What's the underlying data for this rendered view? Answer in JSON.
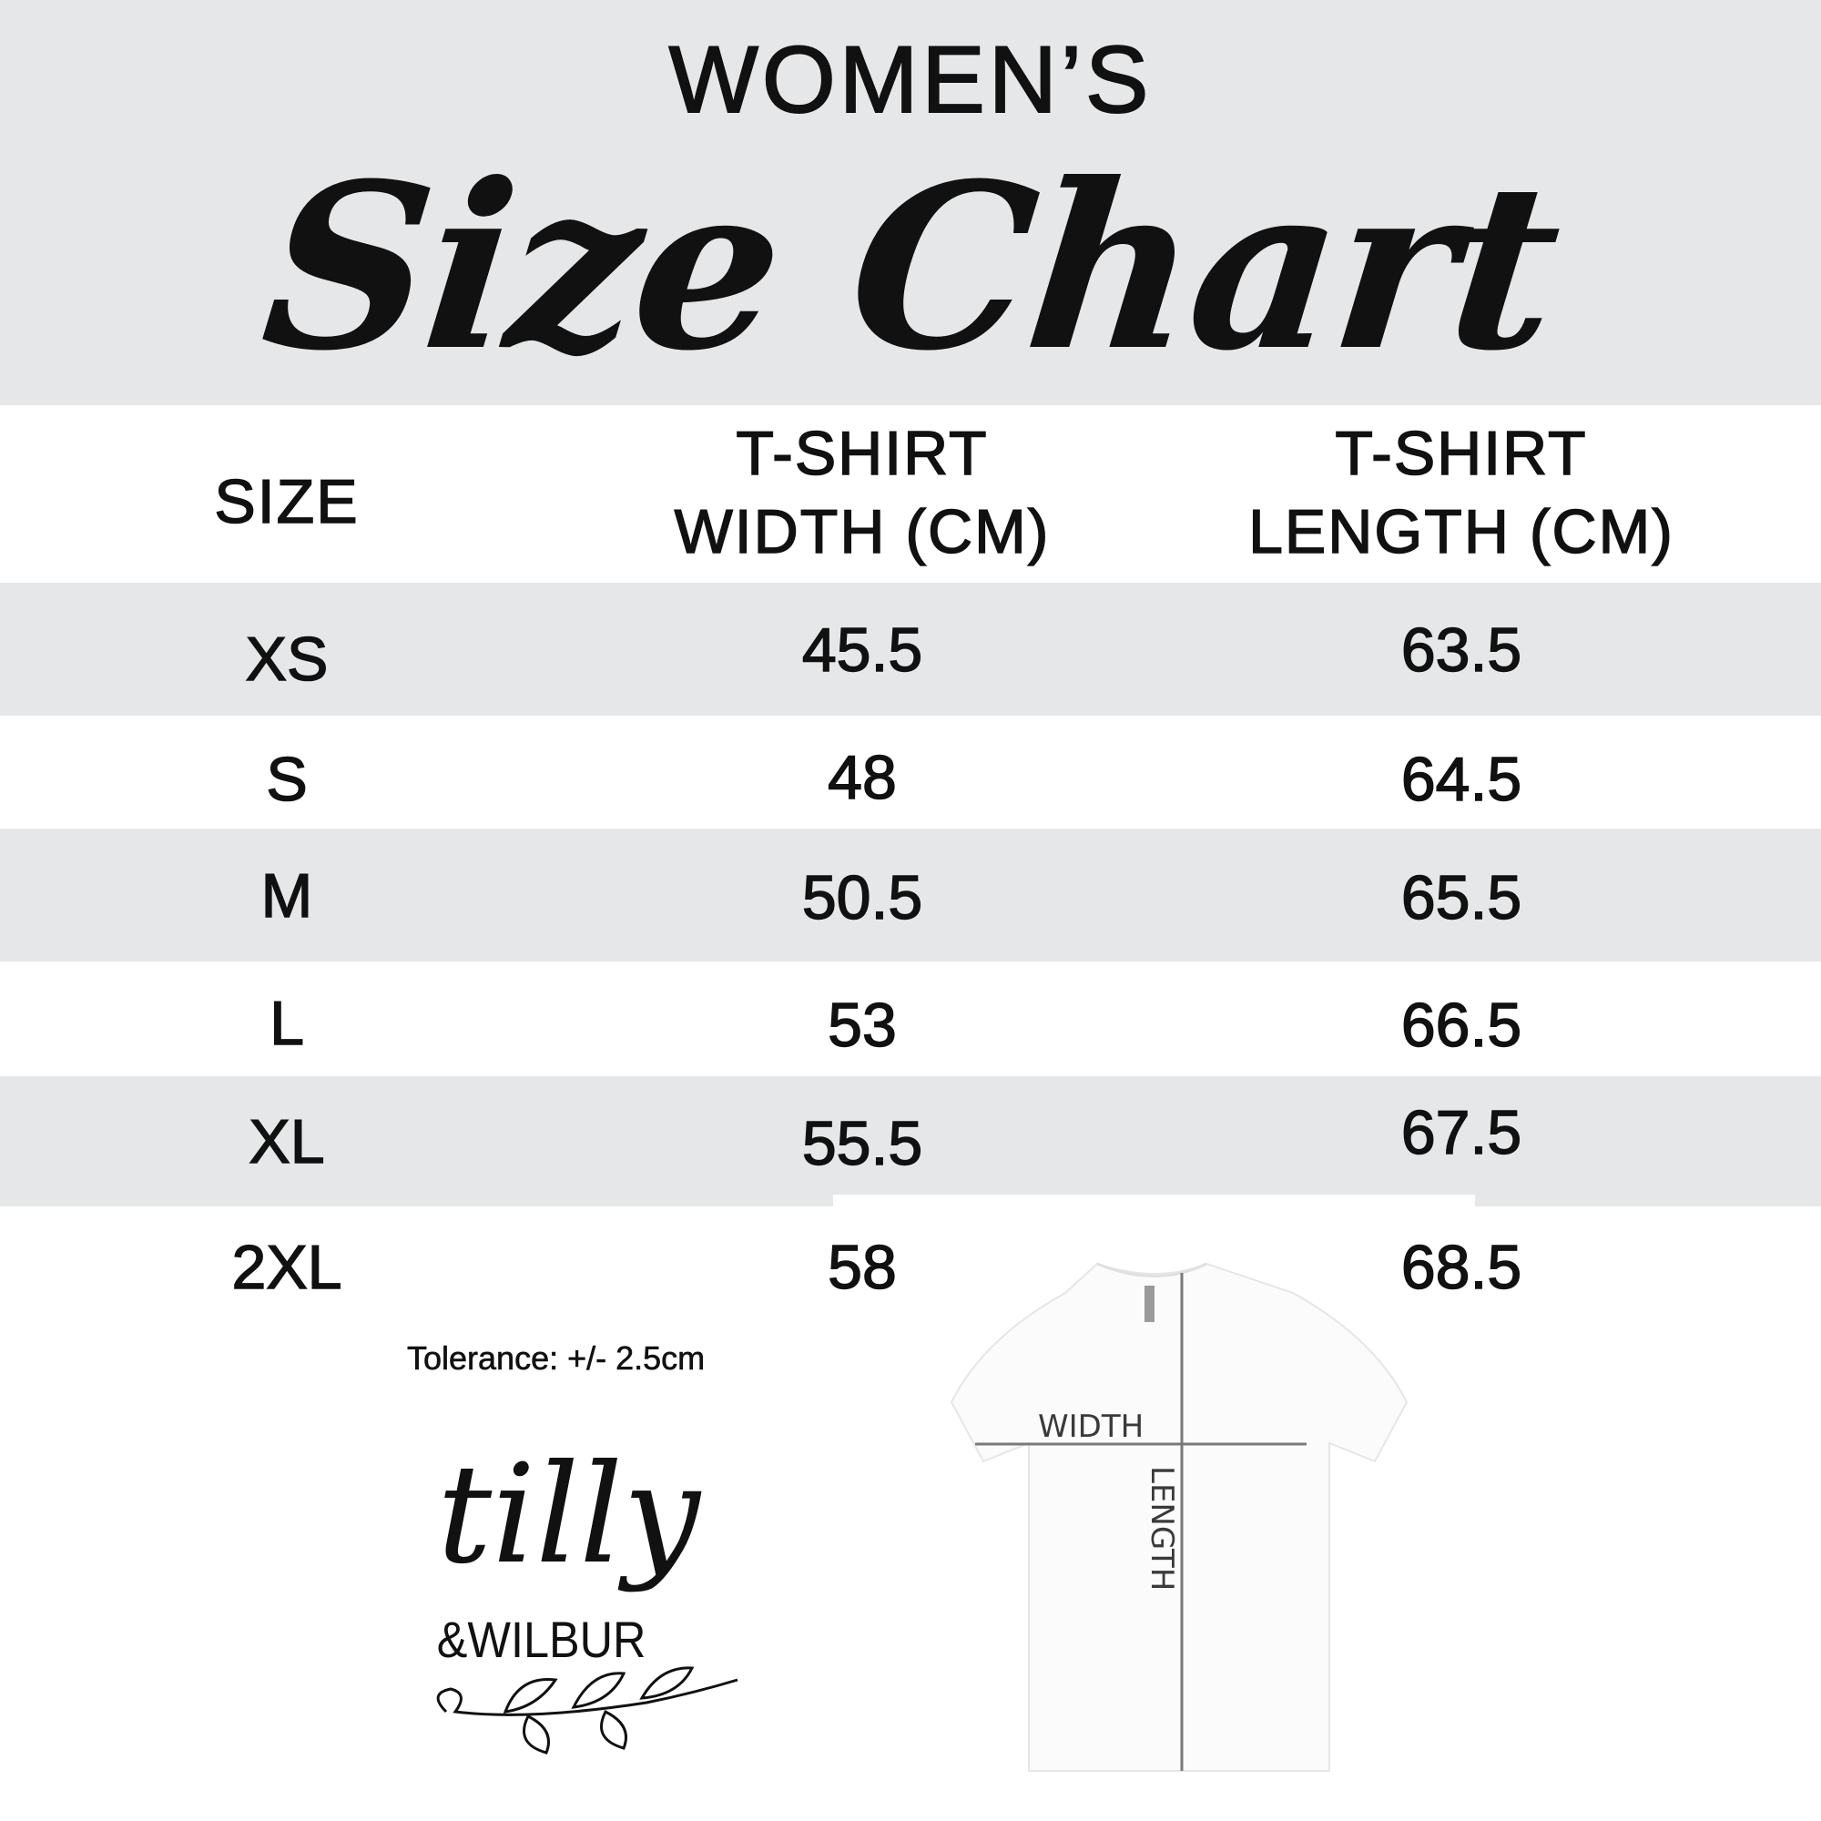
{
  "header": {
    "subtitle": "WOMEN’S",
    "title": "Size Chart"
  },
  "colors": {
    "band": "#e6e7e8",
    "text": "#111111",
    "measure_line": "#7a7a7a"
  },
  "table": {
    "columns": [
      {
        "line1": "SIZE",
        "line2": ""
      },
      {
        "line1": "T-SHIRT",
        "line2": "WIDTH (CM)"
      },
      {
        "line1": "T-SHIRT",
        "line2": "LENGTH (CM)"
      }
    ],
    "rows": [
      {
        "size": "XS",
        "width": "45.5",
        "length": "63.5"
      },
      {
        "size": "S",
        "width": "48",
        "length": "64.5"
      },
      {
        "size": "M",
        "width": "50.5",
        "length": "65.5"
      },
      {
        "size": "L",
        "width": "53",
        "length": "66.5"
      },
      {
        "size": "XL",
        "width": "55.5",
        "length": "67.5"
      },
      {
        "size": "2XL",
        "width": "58",
        "length": "68.5"
      }
    ]
  },
  "tolerance": "Tolerance: +/- 2.5cm",
  "diagram": {
    "width_label": "WIDTH",
    "length_label": "LENGTH"
  },
  "logo": {
    "text_main": "tilly",
    "text_sub": "&WILBUR"
  }
}
